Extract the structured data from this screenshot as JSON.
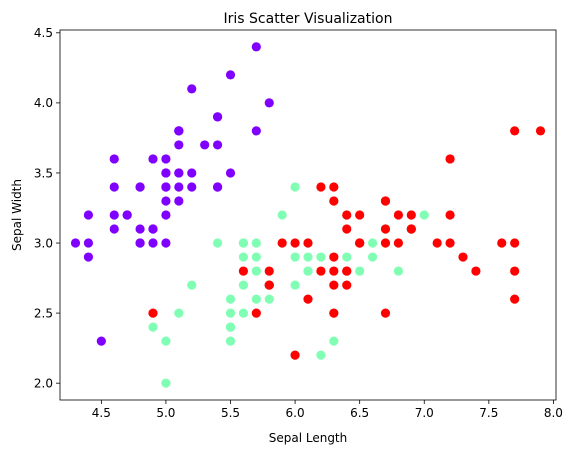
{
  "chart_data": {
    "type": "scatter",
    "title": "Iris Scatter Visualization",
    "xlabel": "Sepal Length",
    "ylabel": "Sepal Width",
    "xlim": [
      4.18,
      8.02
    ],
    "ylim": [
      1.88,
      4.52
    ],
    "xticks": [
      4.5,
      5.0,
      5.5,
      6.0,
      6.5,
      7.0,
      7.5,
      8.0
    ],
    "yticks": [
      2.0,
      2.5,
      3.0,
      3.5,
      4.0,
      4.5
    ],
    "grid": false,
    "legend": false,
    "series": [
      {
        "color": "#8000ff",
        "points": [
          [
            5.1,
            3.5
          ],
          [
            4.9,
            3.0
          ],
          [
            4.7,
            3.2
          ],
          [
            4.6,
            3.1
          ],
          [
            5.0,
            3.6
          ],
          [
            5.4,
            3.9
          ],
          [
            4.6,
            3.4
          ],
          [
            5.0,
            3.4
          ],
          [
            4.4,
            2.9
          ],
          [
            4.9,
            3.1
          ],
          [
            5.4,
            3.7
          ],
          [
            4.8,
            3.4
          ],
          [
            4.8,
            3.0
          ],
          [
            4.3,
            3.0
          ],
          [
            5.8,
            4.0
          ],
          [
            5.7,
            4.4
          ],
          [
            5.4,
            3.9
          ],
          [
            5.1,
            3.5
          ],
          [
            5.7,
            3.8
          ],
          [
            5.1,
            3.8
          ],
          [
            5.4,
            3.4
          ],
          [
            5.1,
            3.7
          ],
          [
            4.6,
            3.6
          ],
          [
            5.1,
            3.3
          ],
          [
            4.8,
            3.4
          ],
          [
            5.0,
            3.0
          ],
          [
            5.0,
            3.4
          ],
          [
            5.2,
            3.5
          ],
          [
            5.2,
            3.4
          ],
          [
            4.7,
            3.2
          ],
          [
            4.8,
            3.1
          ],
          [
            5.4,
            3.4
          ],
          [
            5.2,
            4.1
          ],
          [
            5.5,
            4.2
          ],
          [
            4.9,
            3.1
          ],
          [
            5.0,
            3.2
          ],
          [
            5.5,
            3.5
          ],
          [
            4.9,
            3.6
          ],
          [
            4.4,
            3.0
          ],
          [
            5.1,
            3.4
          ],
          [
            5.0,
            3.5
          ],
          [
            4.5,
            2.3
          ],
          [
            4.4,
            3.2
          ],
          [
            5.0,
            3.5
          ],
          [
            5.1,
            3.8
          ],
          [
            4.8,
            3.0
          ],
          [
            5.1,
            3.8
          ],
          [
            4.6,
            3.2
          ],
          [
            5.3,
            3.7
          ],
          [
            5.0,
            3.3
          ]
        ]
      },
      {
        "color": "#80ffb4",
        "points": [
          [
            7.0,
            3.2
          ],
          [
            6.4,
            3.2
          ],
          [
            6.9,
            3.1
          ],
          [
            5.5,
            2.3
          ],
          [
            6.5,
            2.8
          ],
          [
            5.7,
            2.8
          ],
          [
            6.3,
            3.3
          ],
          [
            4.9,
            2.4
          ],
          [
            6.6,
            2.9
          ],
          [
            5.2,
            2.7
          ],
          [
            5.0,
            2.0
          ],
          [
            5.9,
            3.0
          ],
          [
            6.0,
            2.2
          ],
          [
            6.1,
            2.9
          ],
          [
            5.6,
            2.9
          ],
          [
            6.7,
            3.1
          ],
          [
            5.6,
            3.0
          ],
          [
            5.8,
            2.7
          ],
          [
            6.2,
            2.2
          ],
          [
            5.6,
            2.5
          ],
          [
            5.9,
            3.2
          ],
          [
            6.1,
            2.8
          ],
          [
            6.3,
            2.5
          ],
          [
            6.1,
            2.8
          ],
          [
            6.4,
            2.9
          ],
          [
            6.6,
            3.0
          ],
          [
            6.8,
            2.8
          ],
          [
            6.7,
            3.0
          ],
          [
            6.0,
            2.9
          ],
          [
            5.7,
            2.6
          ],
          [
            5.5,
            2.4
          ],
          [
            5.5,
            2.4
          ],
          [
            5.8,
            2.7
          ],
          [
            6.0,
            2.7
          ],
          [
            5.4,
            3.0
          ],
          [
            6.0,
            3.4
          ],
          [
            6.7,
            3.1
          ],
          [
            6.3,
            2.3
          ],
          [
            5.6,
            3.0
          ],
          [
            5.5,
            2.5
          ],
          [
            5.5,
            2.6
          ],
          [
            6.1,
            3.0
          ],
          [
            5.8,
            2.6
          ],
          [
            5.0,
            2.3
          ],
          [
            5.6,
            2.7
          ],
          [
            5.7,
            3.0
          ],
          [
            5.7,
            2.9
          ],
          [
            6.2,
            2.9
          ],
          [
            5.1,
            2.5
          ],
          [
            5.7,
            2.8
          ]
        ]
      },
      {
        "color": "#ff0000",
        "points": [
          [
            6.3,
            3.3
          ],
          [
            5.8,
            2.7
          ],
          [
            7.1,
            3.0
          ],
          [
            6.3,
            2.9
          ],
          [
            6.5,
            3.0
          ],
          [
            7.6,
            3.0
          ],
          [
            4.9,
            2.5
          ],
          [
            7.3,
            2.9
          ],
          [
            6.7,
            2.5
          ],
          [
            7.2,
            3.6
          ],
          [
            6.5,
            3.2
          ],
          [
            6.4,
            2.7
          ],
          [
            6.8,
            3.0
          ],
          [
            5.7,
            2.5
          ],
          [
            5.8,
            2.8
          ],
          [
            6.4,
            3.2
          ],
          [
            6.5,
            3.0
          ],
          [
            7.7,
            3.8
          ],
          [
            7.7,
            2.6
          ],
          [
            6.0,
            2.2
          ],
          [
            6.9,
            3.2
          ],
          [
            5.6,
            2.8
          ],
          [
            7.7,
            2.8
          ],
          [
            6.3,
            2.7
          ],
          [
            6.7,
            3.3
          ],
          [
            7.2,
            3.2
          ],
          [
            6.2,
            2.8
          ],
          [
            6.1,
            3.0
          ],
          [
            6.4,
            2.8
          ],
          [
            7.2,
            3.0
          ],
          [
            7.4,
            2.8
          ],
          [
            7.9,
            3.8
          ],
          [
            6.4,
            2.8
          ],
          [
            6.3,
            2.8
          ],
          [
            6.1,
            2.6
          ],
          [
            7.7,
            3.0
          ],
          [
            6.3,
            3.4
          ],
          [
            6.4,
            3.1
          ],
          [
            6.0,
            3.0
          ],
          [
            6.9,
            3.1
          ],
          [
            6.7,
            3.1
          ],
          [
            6.9,
            3.1
          ],
          [
            5.8,
            2.7
          ],
          [
            6.8,
            3.2
          ],
          [
            6.7,
            3.3
          ],
          [
            6.7,
            3.0
          ],
          [
            6.3,
            2.5
          ],
          [
            6.5,
            3.0
          ],
          [
            6.2,
            3.4
          ],
          [
            5.9,
            3.0
          ]
        ]
      }
    ]
  }
}
